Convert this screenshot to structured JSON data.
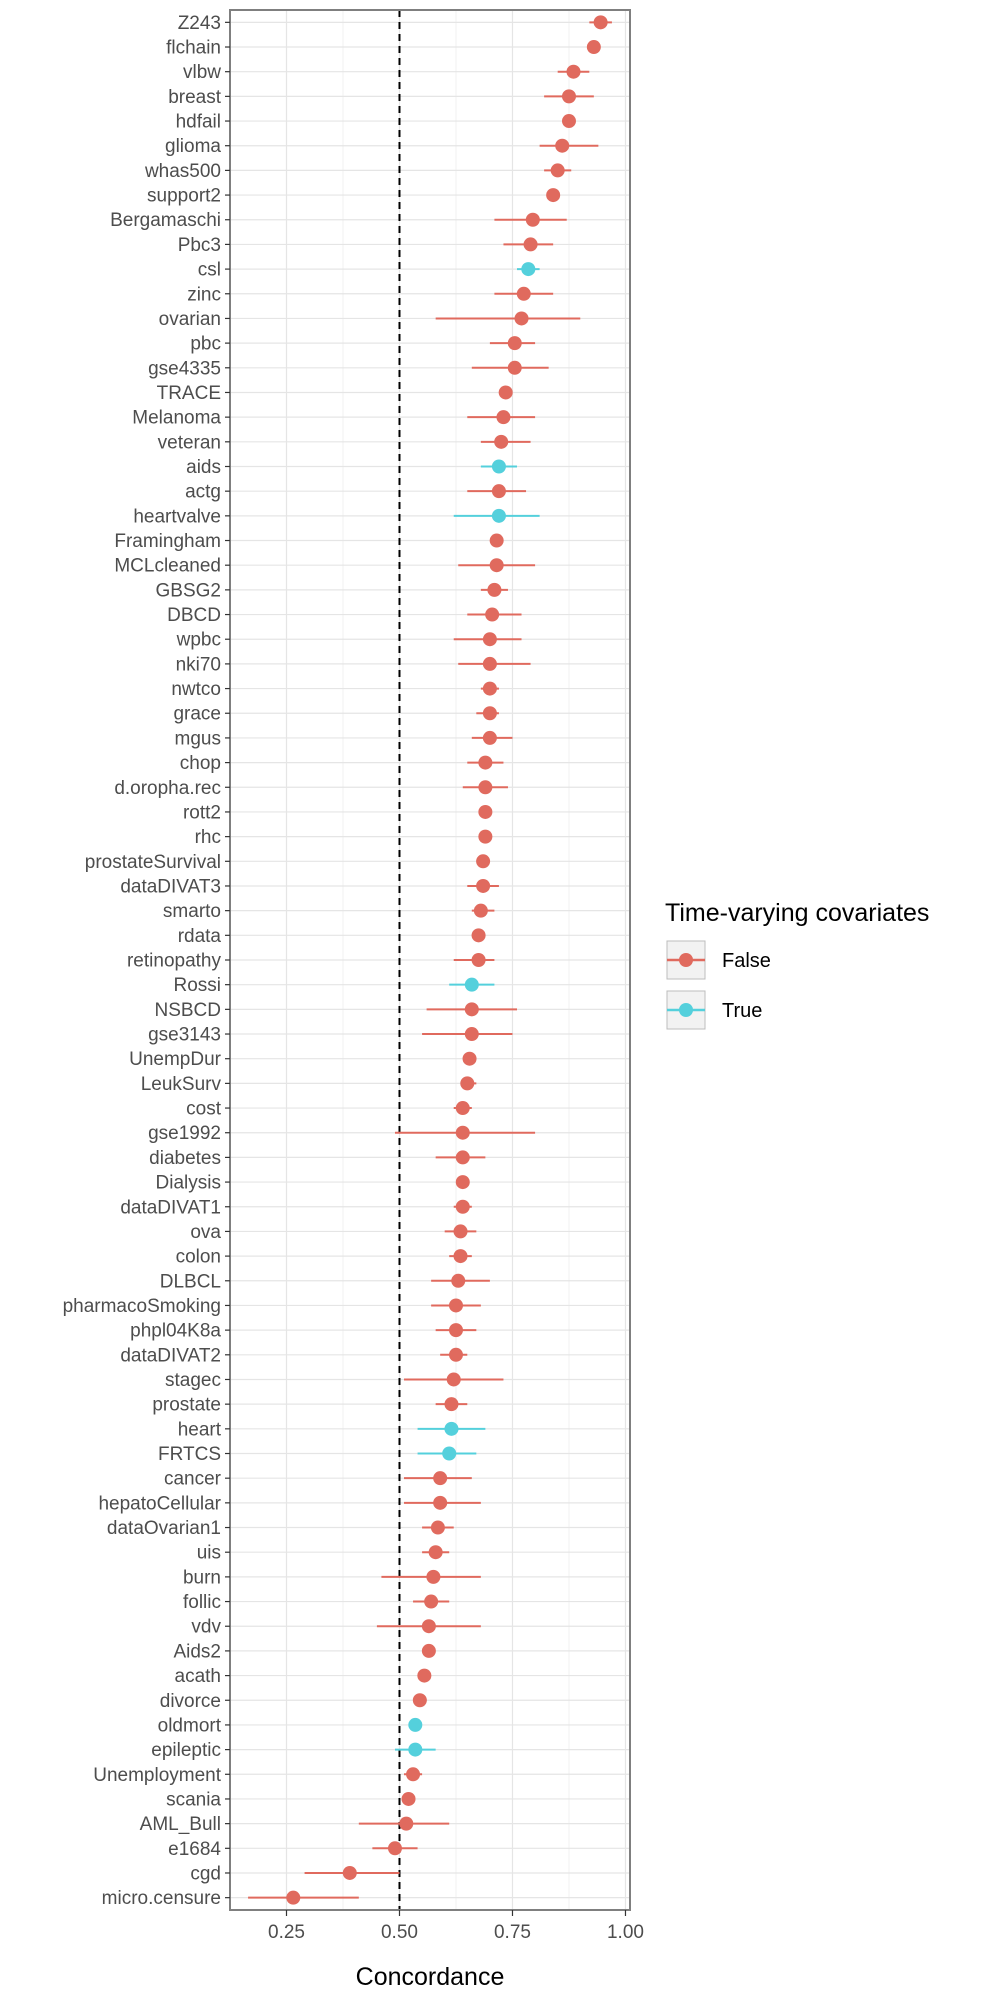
{
  "chart_data": {
    "type": "scatter",
    "xlabel": "Concordance",
    "ylabel": "",
    "xlim": [
      0.125,
      1.01
    ],
    "x_ticks": [
      "0.25",
      "0.50",
      "0.75",
      "1.00"
    ],
    "reference_line": 0.5,
    "legend": {
      "title": "Time-varying covariates",
      "placement": "right",
      "entries": [
        {
          "label": "False",
          "color": "#E06A5E"
        },
        {
          "label": "True",
          "color": "#54D0DC"
        }
      ]
    },
    "grid": true,
    "points": [
      {
        "name": "Z243",
        "est": 0.945,
        "lo": 0.92,
        "hi": 0.97,
        "tv": false
      },
      {
        "name": "flchain",
        "est": 0.93,
        "lo": 0.92,
        "hi": 0.94,
        "tv": false
      },
      {
        "name": "vlbw",
        "est": 0.885,
        "lo": 0.85,
        "hi": 0.92,
        "tv": false
      },
      {
        "name": "breast",
        "est": 0.875,
        "lo": 0.82,
        "hi": 0.93,
        "tv": false
      },
      {
        "name": "hdfail",
        "est": 0.875,
        "lo": 0.865,
        "hi": 0.885,
        "tv": false
      },
      {
        "name": "glioma",
        "est": 0.86,
        "lo": 0.81,
        "hi": 0.94,
        "tv": false
      },
      {
        "name": "whas500",
        "est": 0.85,
        "lo": 0.82,
        "hi": 0.88,
        "tv": false
      },
      {
        "name": "support2",
        "est": 0.84,
        "lo": 0.83,
        "hi": 0.85,
        "tv": false
      },
      {
        "name": "Bergamaschi",
        "est": 0.795,
        "lo": 0.71,
        "hi": 0.87,
        "tv": false
      },
      {
        "name": "Pbc3",
        "est": 0.79,
        "lo": 0.73,
        "hi": 0.84,
        "tv": false
      },
      {
        "name": "csl",
        "est": 0.785,
        "lo": 0.76,
        "hi": 0.81,
        "tv": true
      },
      {
        "name": "zinc",
        "est": 0.775,
        "lo": 0.71,
        "hi": 0.84,
        "tv": false
      },
      {
        "name": "ovarian",
        "est": 0.77,
        "lo": 0.58,
        "hi": 0.9,
        "tv": false
      },
      {
        "name": "pbc",
        "est": 0.755,
        "lo": 0.7,
        "hi": 0.8,
        "tv": false
      },
      {
        "name": "gse4335",
        "est": 0.755,
        "lo": 0.66,
        "hi": 0.83,
        "tv": false
      },
      {
        "name": "TRACE",
        "est": 0.735,
        "lo": 0.72,
        "hi": 0.75,
        "tv": false
      },
      {
        "name": "Melanoma",
        "est": 0.73,
        "lo": 0.65,
        "hi": 0.8,
        "tv": false
      },
      {
        "name": "veteran",
        "est": 0.725,
        "lo": 0.68,
        "hi": 0.79,
        "tv": false
      },
      {
        "name": "aids",
        "est": 0.72,
        "lo": 0.68,
        "hi": 0.76,
        "tv": true
      },
      {
        "name": "actg",
        "est": 0.72,
        "lo": 0.65,
        "hi": 0.78,
        "tv": false
      },
      {
        "name": "heartvalve",
        "est": 0.72,
        "lo": 0.62,
        "hi": 0.81,
        "tv": true
      },
      {
        "name": "Framingham",
        "est": 0.715,
        "lo": 0.705,
        "hi": 0.725,
        "tv": false
      },
      {
        "name": "MCLcleaned",
        "est": 0.715,
        "lo": 0.63,
        "hi": 0.8,
        "tv": false
      },
      {
        "name": "GBSG2",
        "est": 0.71,
        "lo": 0.68,
        "hi": 0.74,
        "tv": false
      },
      {
        "name": "DBCD",
        "est": 0.705,
        "lo": 0.65,
        "hi": 0.77,
        "tv": false
      },
      {
        "name": "wpbc",
        "est": 0.7,
        "lo": 0.62,
        "hi": 0.77,
        "tv": false
      },
      {
        "name": "nki70",
        "est": 0.7,
        "lo": 0.63,
        "hi": 0.79,
        "tv": false
      },
      {
        "name": "nwtco",
        "est": 0.7,
        "lo": 0.68,
        "hi": 0.72,
        "tv": false
      },
      {
        "name": "grace",
        "est": 0.7,
        "lo": 0.67,
        "hi": 0.72,
        "tv": false
      },
      {
        "name": "mgus",
        "est": 0.7,
        "lo": 0.66,
        "hi": 0.75,
        "tv": false
      },
      {
        "name": "chop",
        "est": 0.69,
        "lo": 0.65,
        "hi": 0.73,
        "tv": false
      },
      {
        "name": "d.oropha.rec",
        "est": 0.69,
        "lo": 0.64,
        "hi": 0.74,
        "tv": false
      },
      {
        "name": "rott2",
        "est": 0.69,
        "lo": 0.68,
        "hi": 0.7,
        "tv": false
      },
      {
        "name": "rhc",
        "est": 0.69,
        "lo": 0.68,
        "hi": 0.7,
        "tv": false
      },
      {
        "name": "prostateSurvival",
        "est": 0.685,
        "lo": 0.675,
        "hi": 0.695,
        "tv": false
      },
      {
        "name": "dataDIVAT3",
        "est": 0.685,
        "lo": 0.65,
        "hi": 0.72,
        "tv": false
      },
      {
        "name": "smarto",
        "est": 0.68,
        "lo": 0.66,
        "hi": 0.71,
        "tv": false
      },
      {
        "name": "rdata",
        "est": 0.675,
        "lo": 0.66,
        "hi": 0.69,
        "tv": false
      },
      {
        "name": "retinopathy",
        "est": 0.675,
        "lo": 0.62,
        "hi": 0.71,
        "tv": false
      },
      {
        "name": "Rossi",
        "est": 0.66,
        "lo": 0.61,
        "hi": 0.71,
        "tv": true
      },
      {
        "name": "NSBCD",
        "est": 0.66,
        "lo": 0.56,
        "hi": 0.76,
        "tv": false
      },
      {
        "name": "gse3143",
        "est": 0.66,
        "lo": 0.55,
        "hi": 0.75,
        "tv": false
      },
      {
        "name": "UnempDur",
        "est": 0.655,
        "lo": 0.645,
        "hi": 0.665,
        "tv": false
      },
      {
        "name": "LeukSurv",
        "est": 0.65,
        "lo": 0.635,
        "hi": 0.67,
        "tv": false
      },
      {
        "name": "cost",
        "est": 0.64,
        "lo": 0.62,
        "hi": 0.66,
        "tv": false
      },
      {
        "name": "gse1992",
        "est": 0.64,
        "lo": 0.49,
        "hi": 0.8,
        "tv": false
      },
      {
        "name": "diabetes",
        "est": 0.64,
        "lo": 0.58,
        "hi": 0.69,
        "tv": false
      },
      {
        "name": "Dialysis",
        "est": 0.64,
        "lo": 0.63,
        "hi": 0.65,
        "tv": false
      },
      {
        "name": "dataDIVAT1",
        "est": 0.64,
        "lo": 0.62,
        "hi": 0.66,
        "tv": false
      },
      {
        "name": "ova",
        "est": 0.635,
        "lo": 0.6,
        "hi": 0.67,
        "tv": false
      },
      {
        "name": "colon",
        "est": 0.635,
        "lo": 0.61,
        "hi": 0.66,
        "tv": false
      },
      {
        "name": "DLBCL",
        "est": 0.63,
        "lo": 0.57,
        "hi": 0.7,
        "tv": false
      },
      {
        "name": "pharmacoSmoking",
        "est": 0.625,
        "lo": 0.57,
        "hi": 0.68,
        "tv": false
      },
      {
        "name": "phpl04K8a",
        "est": 0.625,
        "lo": 0.58,
        "hi": 0.67,
        "tv": false
      },
      {
        "name": "dataDIVAT2",
        "est": 0.625,
        "lo": 0.59,
        "hi": 0.65,
        "tv": false
      },
      {
        "name": "stagec",
        "est": 0.62,
        "lo": 0.51,
        "hi": 0.73,
        "tv": false
      },
      {
        "name": "prostate",
        "est": 0.615,
        "lo": 0.58,
        "hi": 0.65,
        "tv": false
      },
      {
        "name": "heart",
        "est": 0.615,
        "lo": 0.54,
        "hi": 0.69,
        "tv": true
      },
      {
        "name": "FRTCS",
        "est": 0.61,
        "lo": 0.54,
        "hi": 0.67,
        "tv": true
      },
      {
        "name": "cancer",
        "est": 0.59,
        "lo": 0.51,
        "hi": 0.66,
        "tv": false
      },
      {
        "name": "hepatoCellular",
        "est": 0.59,
        "lo": 0.51,
        "hi": 0.68,
        "tv": false
      },
      {
        "name": "dataOvarian1",
        "est": 0.585,
        "lo": 0.55,
        "hi": 0.62,
        "tv": false
      },
      {
        "name": "uis",
        "est": 0.58,
        "lo": 0.55,
        "hi": 0.61,
        "tv": false
      },
      {
        "name": "burn",
        "est": 0.575,
        "lo": 0.46,
        "hi": 0.68,
        "tv": false
      },
      {
        "name": "follic",
        "est": 0.57,
        "lo": 0.53,
        "hi": 0.61,
        "tv": false
      },
      {
        "name": "vdv",
        "est": 0.565,
        "lo": 0.45,
        "hi": 0.68,
        "tv": false
      },
      {
        "name": "Aids2",
        "est": 0.565,
        "lo": 0.555,
        "hi": 0.575,
        "tv": false
      },
      {
        "name": "acath",
        "est": 0.555,
        "lo": 0.545,
        "hi": 0.565,
        "tv": false
      },
      {
        "name": "divorce",
        "est": 0.545,
        "lo": 0.53,
        "hi": 0.56,
        "tv": false
      },
      {
        "name": "oldmort",
        "est": 0.535,
        "lo": 0.525,
        "hi": 0.545,
        "tv": true
      },
      {
        "name": "epileptic",
        "est": 0.535,
        "lo": 0.49,
        "hi": 0.58,
        "tv": true
      },
      {
        "name": "Unemployment",
        "est": 0.53,
        "lo": 0.51,
        "hi": 0.55,
        "tv": false
      },
      {
        "name": "scania",
        "est": 0.52,
        "lo": 0.51,
        "hi": 0.53,
        "tv": false
      },
      {
        "name": "AML_Bull",
        "est": 0.515,
        "lo": 0.41,
        "hi": 0.61,
        "tv": false
      },
      {
        "name": "e1684",
        "est": 0.49,
        "lo": 0.44,
        "hi": 0.54,
        "tv": false
      },
      {
        "name": "cgd",
        "est": 0.39,
        "lo": 0.29,
        "hi": 0.5,
        "tv": false
      },
      {
        "name": "micro.censure",
        "est": 0.265,
        "lo": 0.165,
        "hi": 0.41,
        "tv": false
      }
    ]
  }
}
